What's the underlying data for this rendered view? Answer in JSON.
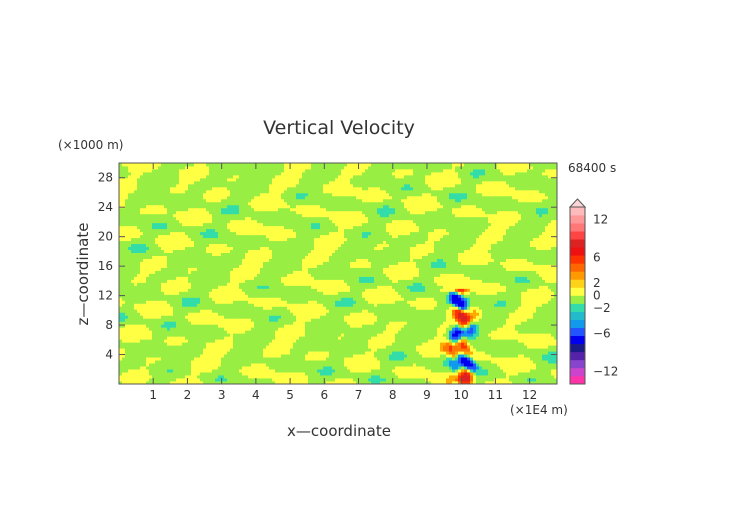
{
  "chart_data": {
    "type": "heatmap",
    "title": "Vertical Velocity",
    "xlabel": "x—coordinate",
    "ylabel": "z—coordinate",
    "x_unit": "(×1E4 m)",
    "y_unit": "(×1000 m)",
    "time_label": "68400 s",
    "xlim": [
      0,
      12.8
    ],
    "ylim": [
      0,
      30
    ],
    "x_ticks": [
      1,
      2,
      3,
      4,
      5,
      6,
      7,
      8,
      9,
      10,
      11,
      12
    ],
    "y_ticks": [
      4,
      8,
      12,
      16,
      20,
      24,
      28
    ],
    "colorbar": {
      "tick_labels": [
        12,
        6,
        2,
        0,
        -2,
        -6,
        -12
      ],
      "range": [
        -14,
        14
      ],
      "colors": [
        "#ff33aa",
        "#cc44cc",
        "#8844cc",
        "#5522aa",
        "#1a1a88",
        "#0000ee",
        "#2255ff",
        "#1199ee",
        "#22bbcc",
        "#33ddaa",
        "#99ee44",
        "#ffff44",
        "#ffd21a",
        "#ff9900",
        "#ff6600",
        "#ff3300",
        "#ee1111",
        "#dd2222",
        "#ff4444",
        "#ff7777",
        "#ff9999",
        "#ffbbbb"
      ]
    },
    "field_description_values": {
      "background_range": [
        -1,
        1
      ],
      "plume_x_center": 10.0,
      "plume_max": 10,
      "plume_min": -6
    }
  }
}
